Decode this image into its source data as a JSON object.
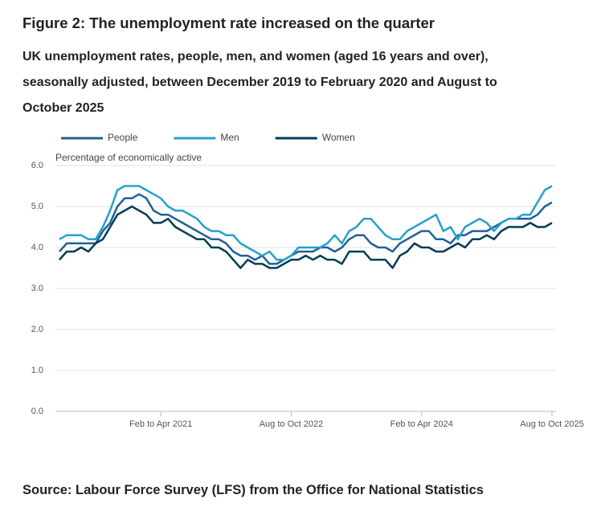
{
  "chart_data": {
    "type": "line",
    "title": "Figure 2: The unemployment rate increased on the quarter",
    "subtitle": "UK unemployment rates, people, men, and women (aged 16 years and over), seasonally adjusted, between December 2019 to February 2020 and August to October 2025",
    "y_label": "Percentage of economically active",
    "source": "Source: Labour Force Survey (LFS) from the Office for National Statistics",
    "categories": [
      null,
      null,
      null,
      null,
      null,
      null,
      null,
      null,
      null,
      null,
      null,
      null,
      null,
      null,
      "Feb to Apr 2021",
      null,
      null,
      null,
      null,
      null,
      null,
      null,
      null,
      null,
      null,
      null,
      null,
      null,
      null,
      null,
      null,
      null,
      "Aug to Oct 2022",
      null,
      null,
      null,
      null,
      null,
      null,
      null,
      null,
      null,
      null,
      null,
      null,
      null,
      null,
      null,
      null,
      null,
      "Feb to Apr 2024",
      null,
      null,
      null,
      null,
      null,
      null,
      null,
      null,
      null,
      null,
      null,
      null,
      null,
      null,
      null,
      null,
      null,
      "Aug to Oct 2025"
    ],
    "series": [
      {
        "name": "People",
        "color": "#206095",
        "values": [
          3.9,
          4.1,
          4.1,
          4.1,
          4.1,
          4.1,
          4.4,
          4.6,
          5.0,
          5.2,
          5.2,
          5.3,
          5.2,
          4.9,
          4.8,
          4.8,
          4.7,
          4.6,
          4.5,
          4.4,
          4.3,
          4.2,
          4.2,
          4.1,
          3.9,
          3.8,
          3.8,
          3.7,
          3.8,
          3.6,
          3.6,
          3.7,
          3.8,
          3.9,
          3.9,
          3.9,
          4.0,
          4.0,
          3.9,
          4.0,
          4.2,
          4.3,
          4.3,
          4.1,
          4.0,
          4.0,
          3.9,
          4.1,
          4.2,
          4.3,
          4.4,
          4.4,
          4.2,
          4.2,
          4.1,
          4.3,
          4.3,
          4.4,
          4.4,
          4.4,
          4.5,
          4.6,
          4.7,
          4.7,
          4.7,
          4.7,
          4.8,
          5.0,
          5.1
        ]
      },
      {
        "name": "Men",
        "color": "#27a0cc",
        "values": [
          4.2,
          4.3,
          4.3,
          4.3,
          4.2,
          4.2,
          4.5,
          4.9,
          5.4,
          5.5,
          5.5,
          5.5,
          5.4,
          5.3,
          5.2,
          5.0,
          4.9,
          4.9,
          4.8,
          4.7,
          4.5,
          4.4,
          4.4,
          4.3,
          4.3,
          4.1,
          4.0,
          3.9,
          3.8,
          3.9,
          3.7,
          3.7,
          3.8,
          4.0,
          4.0,
          4.0,
          4.0,
          4.1,
          4.3,
          4.1,
          4.4,
          4.5,
          4.7,
          4.7,
          4.5,
          4.3,
          4.2,
          4.2,
          4.4,
          4.5,
          4.6,
          4.7,
          4.8,
          4.4,
          4.5,
          4.2,
          4.5,
          4.6,
          4.7,
          4.6,
          4.4,
          4.6,
          4.7,
          4.7,
          4.8,
          4.8,
          5.1,
          5.4,
          5.5
        ]
      },
      {
        "name": "Women",
        "color": "#003c57",
        "values": [
          3.7,
          3.9,
          3.9,
          4.0,
          3.9,
          4.1,
          4.2,
          4.5,
          4.8,
          4.9,
          5.0,
          4.9,
          4.8,
          4.6,
          4.6,
          4.7,
          4.5,
          4.4,
          4.3,
          4.2,
          4.2,
          4.0,
          4.0,
          3.9,
          3.7,
          3.5,
          3.7,
          3.6,
          3.6,
          3.5,
          3.5,
          3.6,
          3.7,
          3.7,
          3.8,
          3.7,
          3.8,
          3.7,
          3.7,
          3.6,
          3.9,
          3.9,
          3.9,
          3.7,
          3.7,
          3.7,
          3.5,
          3.8,
          3.9,
          4.1,
          4.0,
          4.0,
          3.9,
          3.9,
          4.0,
          4.1,
          4.0,
          4.2,
          4.2,
          4.3,
          4.2,
          4.4,
          4.5,
          4.5,
          4.5,
          4.6,
          4.5,
          4.5,
          4.6
        ]
      }
    ],
    "ylim": [
      0,
      6
    ],
    "yticks": [
      {
        "value": 0,
        "label": "0.0"
      },
      {
        "value": 1,
        "label": "1.0"
      },
      {
        "value": 2,
        "label": "2.0"
      },
      {
        "value": 3,
        "label": "3.0"
      },
      {
        "value": 4,
        "label": "4.0"
      },
      {
        "value": 5,
        "label": "5.0"
      },
      {
        "value": 6,
        "label": "6.0"
      }
    ],
    "grid": true,
    "legend": "top"
  }
}
